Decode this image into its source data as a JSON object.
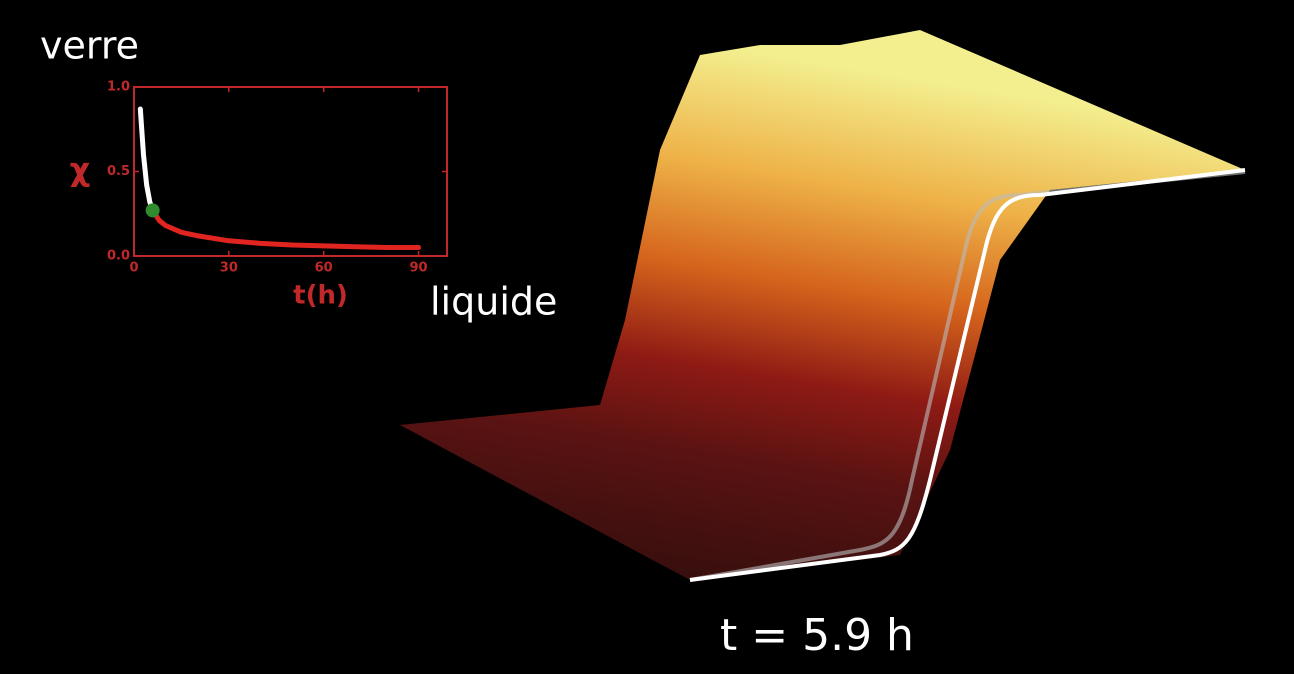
{
  "labels": {
    "glass": "verre",
    "liquid": "liquide",
    "time": "t = 5.9 h"
  },
  "chart_data": {
    "type": "line",
    "xlabel": "t(h)",
    "ylabel": "χ",
    "x": [
      2,
      3,
      4,
      5,
      5.9,
      8,
      10,
      15,
      20,
      30,
      40,
      50,
      60,
      70,
      80,
      90
    ],
    "series": [
      {
        "color": "#ffffff",
        "values": [
          0.87,
          0.6,
          0.42,
          0.32,
          0.27,
          null,
          null,
          null,
          null,
          null,
          null,
          null,
          null,
          null,
          null,
          null
        ]
      },
      {
        "color": "#e0241f",
        "values": [
          null,
          null,
          null,
          null,
          0.27,
          0.21,
          0.18,
          0.14,
          0.12,
          0.09,
          0.075,
          0.065,
          0.06,
          0.055,
          0.05,
          0.05
        ]
      }
    ],
    "marker": {
      "x": 5.9,
      "y": 0.27,
      "color": "#2e8b2e"
    },
    "xlim": [
      0,
      99
    ],
    "ylim": [
      0,
      1
    ],
    "xticks": [
      0,
      30,
      60,
      90
    ],
    "yticks": [
      {
        "value": 0,
        "label": "0.0"
      },
      {
        "value": 0.5,
        "label": "0.5"
      },
      {
        "value": 1,
        "label": "1.0"
      }
    ],
    "axis_color": "#c0282a",
    "grid": false
  }
}
